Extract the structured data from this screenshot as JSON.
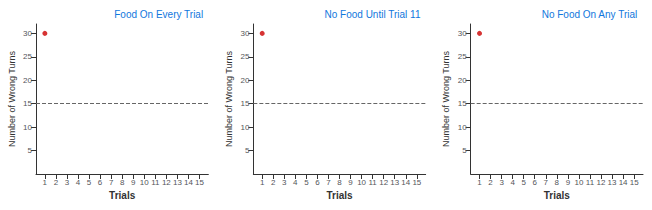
{
  "chart_data": [
    {
      "type": "scatter",
      "title": "Food On Every Trial",
      "title_color": "#1177DD",
      "xlabel": "Trials",
      "ylabel": "Number of Wrong Turns",
      "x": [
        1
      ],
      "values": [
        30
      ],
      "color": "#CC0000",
      "hline": {
        "y": 15,
        "color": "#666666",
        "line_style": "dashed"
      },
      "xlim": [
        0.2,
        15.8
      ],
      "xticks": [
        1,
        2,
        3,
        4,
        5,
        6,
        7,
        8,
        9,
        10,
        11,
        12,
        13,
        14,
        15
      ],
      "ylim": [
        0,
        32
      ],
      "yticks": [
        5,
        10,
        15,
        20,
        25,
        30
      ],
      "axis_color": "#333333",
      "grid": false
    },
    {
      "type": "scatter",
      "title": "No Food Until Trial 11",
      "title_color": "#1177DD",
      "xlabel": "Trials",
      "ylabel": "Number of Wrong Turns",
      "x": [
        1
      ],
      "values": [
        30
      ],
      "color": "#CC0000",
      "hline": {
        "y": 15,
        "color": "#666666",
        "line_style": "dashed"
      },
      "xlim": [
        0.2,
        15.8
      ],
      "xticks": [
        1,
        2,
        3,
        4,
        5,
        6,
        7,
        8,
        9,
        10,
        11,
        12,
        13,
        14,
        15
      ],
      "ylim": [
        0,
        32
      ],
      "yticks": [
        5,
        10,
        15,
        20,
        25,
        30
      ],
      "axis_color": "#333333",
      "grid": false
    },
    {
      "type": "scatter",
      "title": "No Food On Any Trial",
      "title_color": "#1177DD",
      "xlabel": "Trials",
      "ylabel": "Number of Wrong Turns",
      "x": [
        1
      ],
      "values": [
        30
      ],
      "color": "#CC0000",
      "hline": {
        "y": 15,
        "color": "#666666",
        "line_style": "dashed"
      },
      "xlim": [
        0.2,
        15.8
      ],
      "xticks": [
        1,
        2,
        3,
        4,
        5,
        6,
        7,
        8,
        9,
        10,
        11,
        12,
        13,
        14,
        15
      ],
      "ylim": [
        0,
        32
      ],
      "yticks": [
        5,
        10,
        15,
        20,
        25,
        30
      ],
      "axis_color": "#333333",
      "grid": false
    }
  ]
}
